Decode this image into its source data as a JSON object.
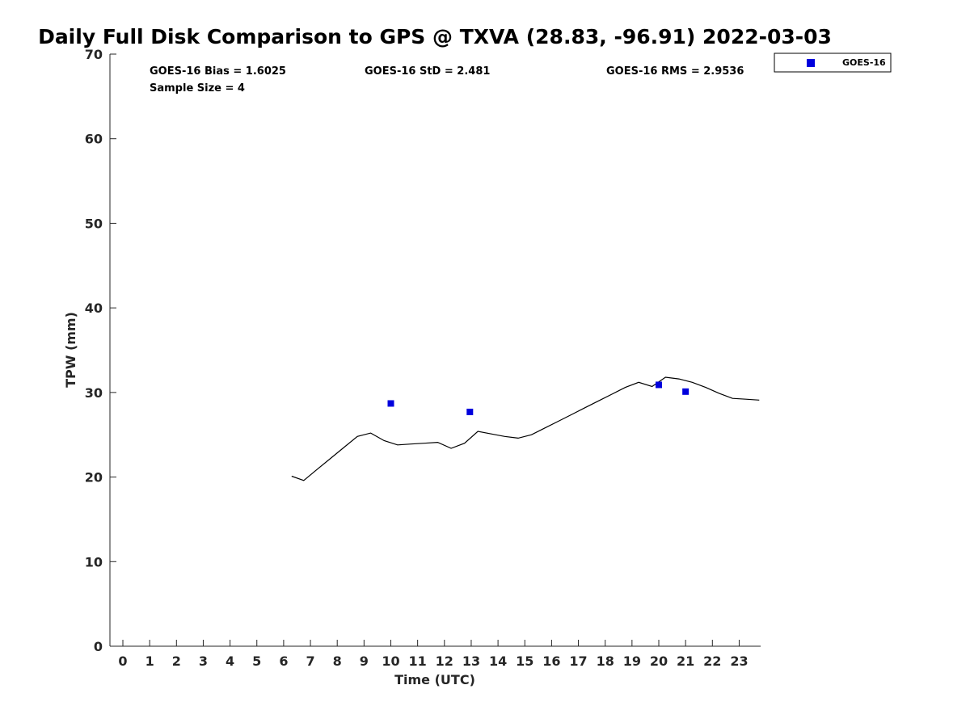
{
  "chart_data": {
    "type": "line",
    "title": "Daily Full Disk Comparison to GPS @ TXVA (28.83, -96.91) 2022-03-03",
    "xlabel": "Time (UTC)",
    "ylabel": "TPW (mm)",
    "xlim": [
      -0.5,
      23.8
    ],
    "ylim": [
      0,
      70
    ],
    "x_ticks": [
      0,
      1,
      2,
      3,
      4,
      5,
      6,
      7,
      8,
      9,
      10,
      11,
      12,
      13,
      14,
      15,
      16,
      17,
      18,
      19,
      20,
      21,
      22,
      23
    ],
    "y_ticks": [
      0,
      10,
      20,
      30,
      40,
      50,
      60,
      70
    ],
    "grid": false,
    "legend_position": "top-right",
    "stats": {
      "bias": "GOES-16 Bias = 1.6025",
      "std": "GOES-16 StD = 2.481",
      "rms": "GOES-16 RMS = 2.9536",
      "sample_size": "Sample Size = 4"
    },
    "series": [
      {
        "kind": "line",
        "color": "#000000",
        "x": [
          6.3,
          6.75,
          7.25,
          7.75,
          8.25,
          8.75,
          9.25,
          9.75,
          10.25,
          10.75,
          11.25,
          11.75,
          12.25,
          12.75,
          13.25,
          13.75,
          14.25,
          14.75,
          15.25,
          15.75,
          16.25,
          16.75,
          17.25,
          17.75,
          18.25,
          18.75,
          19.25,
          19.75,
          20.25,
          20.75,
          21.25,
          21.75,
          22.25,
          22.75,
          23.25,
          23.75
        ],
        "y": [
          20.1,
          19.6,
          20.9,
          22.2,
          23.5,
          24.8,
          25.2,
          24.3,
          23.8,
          23.9,
          24.0,
          24.1,
          23.4,
          24.0,
          25.4,
          25.1,
          24.8,
          24.6,
          25.0,
          25.8,
          26.6,
          27.4,
          28.2,
          29.0,
          29.8,
          30.6,
          31.2,
          30.7,
          31.8,
          31.6,
          31.2,
          30.6,
          29.9,
          29.3,
          29.2,
          29.1
        ]
      },
      {
        "name": "GOES-16",
        "kind": "scatter",
        "marker": "square",
        "color": "#0000dd",
        "x": [
          10.0,
          12.95,
          20.0,
          21.0
        ],
        "y": [
          28.7,
          27.7,
          30.9,
          30.1
        ]
      }
    ]
  }
}
